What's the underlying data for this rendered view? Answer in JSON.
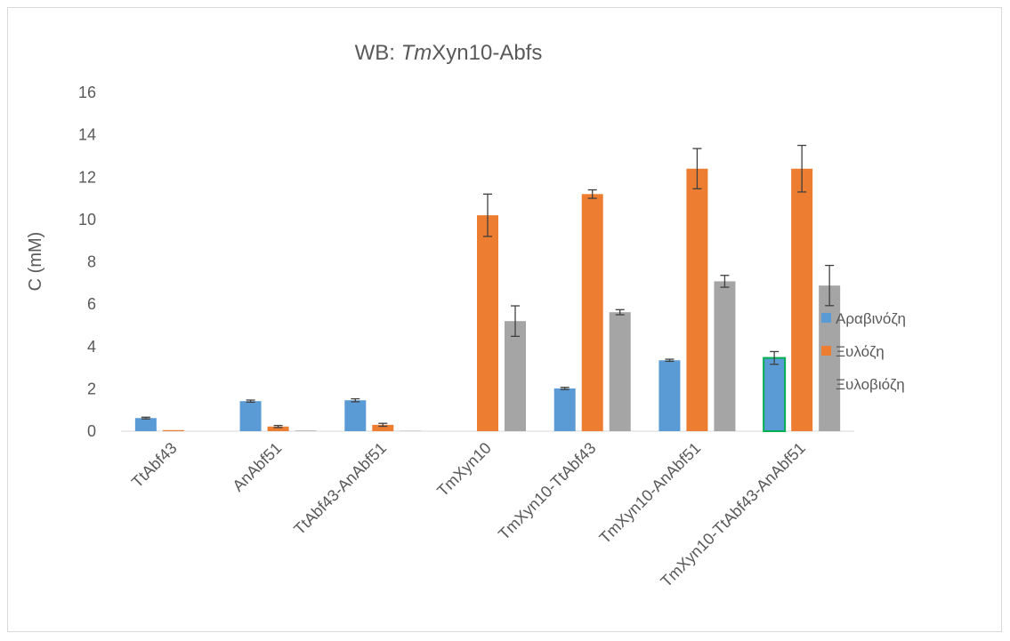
{
  "chart_data": {
    "type": "bar",
    "title": {
      "prefix": "WB: ",
      "italic": "Tm",
      "suffix": "Xyn10-Abfs"
    },
    "ylabel": "C (mM)",
    "xlabel": "",
    "ylim": [
      0,
      16
    ],
    "yticks": [
      0,
      2,
      4,
      6,
      8,
      10,
      12,
      14,
      16
    ],
    "grid": false,
    "legend_position": "right",
    "categories": [
      "TtAbf43",
      "AnAbf51",
      "TtAbf43-AnAbf51",
      "TmXyn10",
      "TmXyn10-TtAbf43",
      "TmXyn10-AnAbf51",
      "TmXyn10-TtAbf43-AnAbf51"
    ],
    "series": [
      {
        "name": "Αραβινόζη",
        "color": "#5b9bd5",
        "values": [
          0.62,
          1.42,
          1.46,
          0.0,
          2.02,
          3.35,
          3.46
        ],
        "errors": [
          0.04,
          0.05,
          0.07,
          0.0,
          0.05,
          0.05,
          0.3
        ]
      },
      {
        "name": "Ξυλόζη",
        "color": "#ed7d31",
        "values": [
          0.05,
          0.22,
          0.3,
          10.2,
          11.2,
          12.4,
          12.4
        ],
        "errors": [
          0.0,
          0.05,
          0.07,
          1.0,
          0.2,
          0.95,
          1.1
        ]
      },
      {
        "name": "Ξυλοβιόζη",
        "color": "#a5a5a5",
        "values": [
          0.0,
          0.03,
          0.02,
          5.2,
          5.62,
          7.08,
          6.88
        ],
        "errors": [
          0.0,
          0.0,
          0.0,
          0.72,
          0.12,
          0.28,
          0.95
        ]
      }
    ]
  }
}
